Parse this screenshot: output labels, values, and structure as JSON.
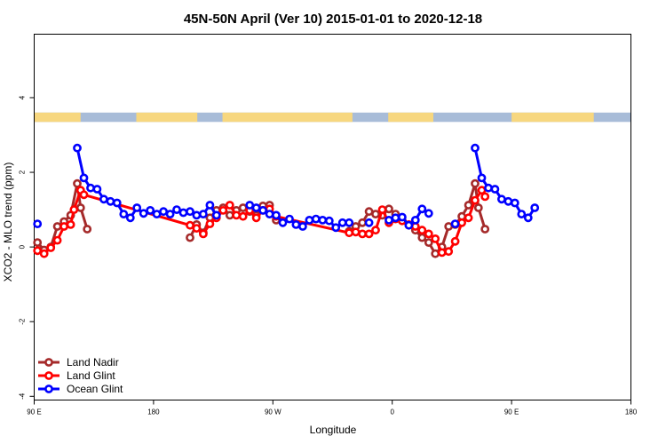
{
  "chart_data": {
    "type": "line",
    "title": "45N-50N April (Ver 10)   2015-01-01 to 2020-12-18",
    "xlabel": "Longitude",
    "ylabel": "XCO2 - MLO trend (ppm)",
    "xlim": [
      90,
      540
    ],
    "ylim": [
      -4.1,
      5.7
    ],
    "x_ticks": [
      {
        "value": 90,
        "label": "90 E"
      },
      {
        "value": 180,
        "label": "180"
      },
      {
        "value": 270,
        "label": "90 W"
      },
      {
        "value": 360,
        "label": "0"
      },
      {
        "value": 450,
        "label": "90 E"
      },
      {
        "value": 540,
        "label": "180"
      }
    ],
    "y_ticks": [
      {
        "value": -4,
        "label": "-4"
      },
      {
        "value": -2,
        "label": "-2"
      },
      {
        "value": 0,
        "label": "0"
      },
      {
        "value": 2,
        "label": "2"
      },
      {
        "value": 4,
        "label": "4"
      }
    ],
    "land_band": {
      "y_min": 3.35,
      "y_max": 3.6,
      "land_color": "#f7d77f",
      "ocean_color": "#a8bcd8"
    },
    "legend_position": "bottom-left",
    "series": [
      {
        "name": "Land Nadir",
        "color": "#a52a2a",
        "points": [
          [
            92.5,
            0.12
          ],
          [
            97.5,
            -0.08
          ],
          [
            102.5,
            0.0
          ],
          [
            107.5,
            0.55
          ],
          [
            112.5,
            0.68
          ],
          [
            117.5,
            0.85
          ],
          [
            122.5,
            1.7
          ],
          [
            125,
            1.05
          ],
          [
            130,
            0.48
          ],
          [
            152.5,
            null
          ],
          [
            207.5,
            0.25
          ],
          [
            212.5,
            0.6
          ],
          [
            217.5,
            0.38
          ],
          [
            222.5,
            0.78
          ],
          [
            227.5,
            0.98
          ],
          [
            232.5,
            1.05
          ],
          [
            237.5,
            0.85
          ],
          [
            242.5,
            0.98
          ],
          [
            247.5,
            1.05
          ],
          [
            252.5,
            0.95
          ],
          [
            257.5,
            0.85
          ],
          [
            262.5,
            1.1
          ],
          [
            267.5,
            1.12
          ],
          [
            272.5,
            0.72
          ],
          [
            287.5,
            null
          ],
          [
            302.5,
            null
          ],
          [
            312.5,
            null
          ],
          [
            322.5,
            null
          ],
          [
            327.5,
            0.42
          ],
          [
            332.5,
            0.55
          ],
          [
            337.5,
            0.65
          ],
          [
            342.5,
            0.95
          ],
          [
            347.5,
            0.88
          ],
          [
            352.5,
            0.85
          ],
          [
            357.5,
            1.02
          ],
          [
            362.5,
            0.88
          ],
          [
            367.5,
            0.7
          ],
          [
            372.5,
            0.58
          ],
          [
            377.5,
            0.45
          ],
          [
            382.5,
            0.25
          ],
          [
            387.5,
            0.12
          ],
          [
            392.5,
            -0.18
          ],
          [
            397.5,
            0.0
          ],
          [
            402.5,
            0.55
          ],
          [
            407.5,
            0.6
          ],
          [
            412.5,
            0.82
          ],
          [
            417.5,
            1.12
          ],
          [
            422.5,
            1.7
          ],
          [
            425,
            1.05
          ],
          [
            430,
            0.48
          ]
        ]
      },
      {
        "name": "Land Glint",
        "color": "#ff0000",
        "points": [
          [
            92.5,
            -0.1
          ],
          [
            97.5,
            -0.18
          ],
          [
            102.5,
            -0.02
          ],
          [
            107.5,
            0.18
          ],
          [
            112.5,
            0.55
          ],
          [
            117.5,
            0.6
          ],
          [
            120,
            1.0
          ],
          [
            125,
            1.52
          ],
          [
            127.5,
            1.4
          ],
          [
            207.5,
            0.58
          ],
          [
            212.5,
            0.5
          ],
          [
            217.5,
            0.35
          ],
          [
            222.5,
            0.62
          ],
          [
            227.5,
            0.78
          ],
          [
            232.5,
            0.98
          ],
          [
            237.5,
            1.12
          ],
          [
            242.5,
            0.85
          ],
          [
            247.5,
            0.82
          ],
          [
            252.5,
            0.98
          ],
          [
            257.5,
            0.78
          ],
          [
            262.5,
            0.98
          ],
          [
            267.5,
            1.02
          ],
          [
            272.5,
            0.82
          ],
          [
            327.5,
            0.38
          ],
          [
            332.5,
            0.4
          ],
          [
            337.5,
            0.35
          ],
          [
            342.5,
            0.35
          ],
          [
            347.5,
            0.45
          ],
          [
            352.5,
            1.0
          ],
          [
            357.5,
            0.65
          ],
          [
            362.5,
            0.75
          ],
          [
            367.5,
            0.7
          ],
          [
            372.5,
            0.6
          ],
          [
            377.5,
            0.55
          ],
          [
            382.5,
            0.45
          ],
          [
            387.5,
            0.35
          ],
          [
            392.5,
            0.22
          ],
          [
            397.5,
            -0.15
          ],
          [
            402.5,
            -0.12
          ],
          [
            407.5,
            0.15
          ],
          [
            412.5,
            0.65
          ],
          [
            417.5,
            0.78
          ],
          [
            422.5,
            1.25
          ],
          [
            427.5,
            1.52
          ],
          [
            430,
            1.35
          ]
        ]
      },
      {
        "name": "Ocean Glint",
        "color": "#0000ff",
        "points": [
          [
            92.5,
            0.62
          ],
          [
            97.5,
            null
          ],
          [
            102.5,
            null
          ],
          [
            107.5,
            null
          ],
          [
            112.5,
            null
          ],
          [
            117.5,
            null
          ],
          [
            122.5,
            2.65
          ],
          [
            127.5,
            1.85
          ],
          [
            132.5,
            1.58
          ],
          [
            137.5,
            1.55
          ],
          [
            142.5,
            1.28
          ],
          [
            147.5,
            1.22
          ],
          [
            152.5,
            1.18
          ],
          [
            157.5,
            0.88
          ],
          [
            162.5,
            0.78
          ],
          [
            167.5,
            1.05
          ],
          [
            172.5,
            0.9
          ],
          [
            177.5,
            0.98
          ],
          [
            182.5,
            0.88
          ],
          [
            187.5,
            0.95
          ],
          [
            192.5,
            0.88
          ],
          [
            197.5,
            1.0
          ],
          [
            202.5,
            0.92
          ],
          [
            207.5,
            0.95
          ],
          [
            212.5,
            0.85
          ],
          [
            217.5,
            0.88
          ],
          [
            222.5,
            1.12
          ],
          [
            227.5,
            0.85
          ],
          [
            232.5,
            null
          ],
          [
            237.5,
            null
          ],
          [
            242.5,
            null
          ],
          [
            247.5,
            null
          ],
          [
            252.5,
            1.12
          ],
          [
            257.5,
            1.05
          ],
          [
            262.5,
            0.98
          ],
          [
            267.5,
            0.88
          ],
          [
            272.5,
            0.85
          ],
          [
            277.5,
            0.65
          ],
          [
            282.5,
            0.75
          ],
          [
            287.5,
            0.6
          ],
          [
            292.5,
            0.55
          ],
          [
            297.5,
            0.72
          ],
          [
            302.5,
            0.75
          ],
          [
            307.5,
            0.72
          ],
          [
            312.5,
            0.7
          ],
          [
            317.5,
            0.52
          ],
          [
            322.5,
            0.65
          ],
          [
            327.5,
            0.65
          ],
          [
            332.5,
            null
          ],
          [
            337.5,
            null
          ],
          [
            342.5,
            0.65
          ],
          [
            347.5,
            null
          ],
          [
            352.5,
            null
          ],
          [
            357.5,
            0.72
          ],
          [
            362.5,
            0.78
          ],
          [
            367.5,
            0.8
          ],
          [
            372.5,
            0.58
          ],
          [
            377.5,
            0.72
          ],
          [
            382.5,
            1.02
          ],
          [
            387.5,
            0.9
          ],
          [
            392.5,
            null
          ],
          [
            397.5,
            null
          ],
          [
            402.5,
            null
          ],
          [
            407.5,
            0.62
          ],
          [
            412.5,
            null
          ],
          [
            417.5,
            null
          ],
          [
            422.5,
            2.65
          ],
          [
            427.5,
            1.85
          ],
          [
            432.5,
            1.58
          ],
          [
            437.5,
            1.55
          ],
          [
            442.5,
            1.28
          ],
          [
            447.5,
            1.22
          ],
          [
            452.5,
            1.18
          ],
          [
            457.5,
            0.88
          ],
          [
            462.5,
            0.78
          ],
          [
            467.5,
            1.05
          ]
        ]
      }
    ]
  }
}
